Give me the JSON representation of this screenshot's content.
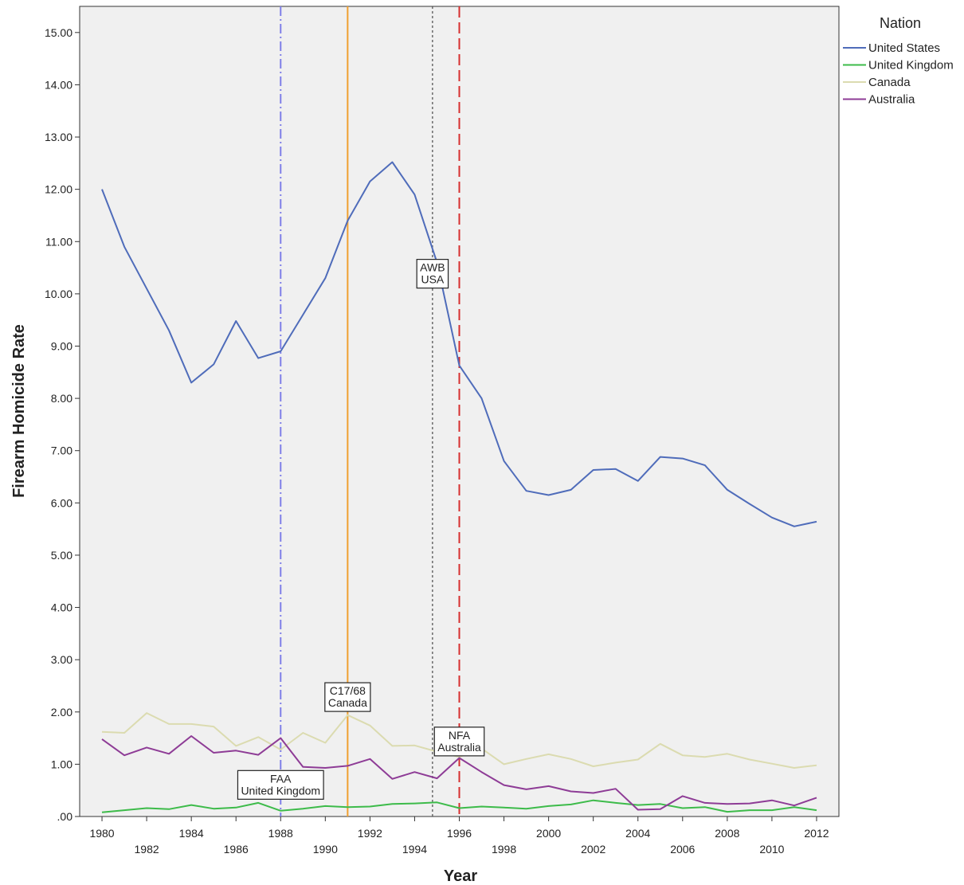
{
  "colors": {
    "plot_background": "#f0f0f0",
    "grid": "#d9d9d9",
    "axis": "#333333"
  },
  "chart_data": {
    "type": "line",
    "title": "",
    "xlabel": "Year",
    "ylabel": "Firearm Homicide Rate",
    "xlim": [
      1979,
      2013
    ],
    "ylim": [
      0,
      15.5
    ],
    "x_ticks_top_row": [
      "1980",
      "1984",
      "1988",
      "1992",
      "1996",
      "2000",
      "2004",
      "2008",
      "2012"
    ],
    "x_ticks_bottom_row": [
      "1982",
      "1986",
      "1990",
      "1994",
      "1998",
      "2002",
      "2006",
      "2010"
    ],
    "y_ticks": [
      ".00",
      "1.00",
      "2.00",
      "3.00",
      "4.00",
      "5.00",
      "6.00",
      "7.00",
      "8.00",
      "9.00",
      "10.00",
      "11.00",
      "12.00",
      "13.00",
      "14.00",
      "15.00"
    ],
    "grid": false,
    "legend_title": "Nation",
    "legend_position": "top-right outside plot",
    "x": [
      1980,
      1981,
      1982,
      1983,
      1984,
      1985,
      1986,
      1987,
      1988,
      1989,
      1990,
      1991,
      1992,
      1993,
      1994,
      1995,
      1996,
      1997,
      1998,
      1999,
      2000,
      2001,
      2002,
      2003,
      2004,
      2005,
      2006,
      2007,
      2008,
      2009,
      2010,
      2011,
      2012
    ],
    "series": [
      {
        "name": "United States",
        "color": "#4f6cba",
        "values": [
          12.0,
          10.9,
          10.1,
          9.3,
          8.3,
          8.65,
          9.48,
          8.77,
          8.9,
          9.6,
          10.3,
          11.4,
          12.15,
          12.52,
          11.9,
          10.6,
          8.63,
          8.0,
          6.8,
          6.23,
          6.15,
          6.25,
          6.63,
          6.65,
          6.42,
          6.88,
          6.85,
          6.72,
          6.25,
          5.98,
          5.72,
          5.55,
          5.64
        ]
      },
      {
        "name": "United Kingdom",
        "color": "#3dbb4a",
        "values": [
          0.08,
          0.12,
          0.16,
          0.14,
          0.22,
          0.15,
          0.17,
          0.26,
          0.11,
          0.15,
          0.2,
          0.18,
          0.19,
          0.24,
          0.25,
          0.27,
          0.16,
          0.19,
          0.17,
          0.15,
          0.2,
          0.23,
          0.31,
          0.26,
          0.22,
          0.24,
          0.16,
          0.18,
          0.09,
          0.12,
          0.12,
          0.18,
          0.12
        ]
      },
      {
        "name": "Canada",
        "color": "#dbdbb0",
        "values": [
          1.62,
          1.6,
          1.98,
          1.77,
          1.77,
          1.72,
          1.35,
          1.52,
          1.28,
          1.6,
          1.41,
          1.94,
          1.74,
          1.35,
          1.36,
          1.24,
          1.14,
          1.3,
          1.0,
          1.1,
          1.19,
          1.1,
          0.96,
          1.03,
          1.09,
          1.39,
          1.17,
          1.14,
          1.2,
          1.09,
          1.01,
          0.93,
          0.98
        ]
      },
      {
        "name": "Australia",
        "color": "#8e3c96",
        "values": [
          1.48,
          1.17,
          1.32,
          1.2,
          1.54,
          1.22,
          1.26,
          1.18,
          1.5,
          0.95,
          0.93,
          0.97,
          1.1,
          0.72,
          0.85,
          0.73,
          1.12,
          0.85,
          0.6,
          0.52,
          0.58,
          0.48,
          0.45,
          0.53,
          0.13,
          0.14,
          0.39,
          0.26,
          0.24,
          0.25,
          0.31,
          0.21,
          0.36
        ]
      }
    ],
    "reference_lines": [
      {
        "x": 1988,
        "color": "#7f7fe8",
        "dash": "dashdot",
        "label_line1": "FAA",
        "label_line2": "United Kingdom",
        "label_y": 0.62
      },
      {
        "x": 1991,
        "color": "#f0a030",
        "dash": "solid",
        "label_line1": "C17/68",
        "label_line2": "Canada",
        "label_y": 2.3
      },
      {
        "x": 1994.8,
        "color": "#555555",
        "dash": "dotted",
        "label_line1": "AWB",
        "label_line2": "USA",
        "label_y": 10.4
      },
      {
        "x": 1996,
        "color": "#d62e2e",
        "dash": "dashed",
        "label_line1": "NFA",
        "label_line2": "Australia",
        "label_y": 1.45
      }
    ]
  }
}
